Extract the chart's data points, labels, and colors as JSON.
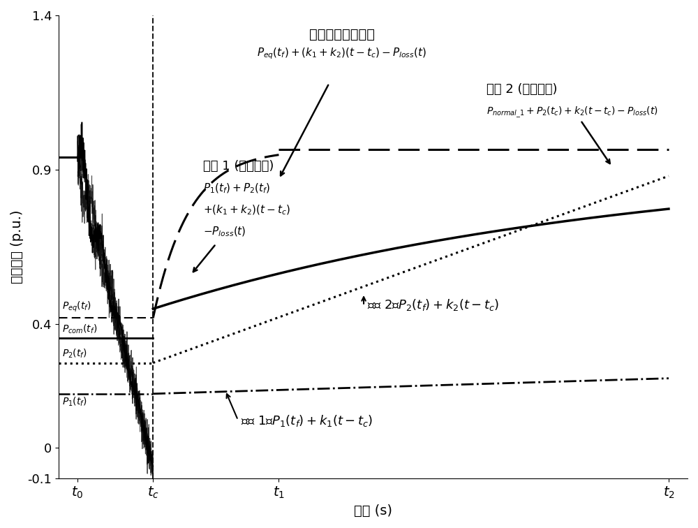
{
  "title": "传统单机等值模型",
  "xlabel": "时间 (s)",
  "ylabel": "有功功率 (p.u.)",
  "ylim": [
    -0.1,
    1.4
  ],
  "xlim": [
    0,
    10
  ],
  "t0": 0.3,
  "tc": 1.5,
  "t1": 3.5,
  "t2": 9.7,
  "P_eq_tf": 0.42,
  "P_com_tf": 0.355,
  "P2_tf": 0.275,
  "P1_tf": 0.175,
  "P_pre": 0.94,
  "k_trad": 0.105,
  "k_det": 0.092,
  "k2": 0.083,
  "k1": 0.01,
  "background_color": "#ffffff"
}
